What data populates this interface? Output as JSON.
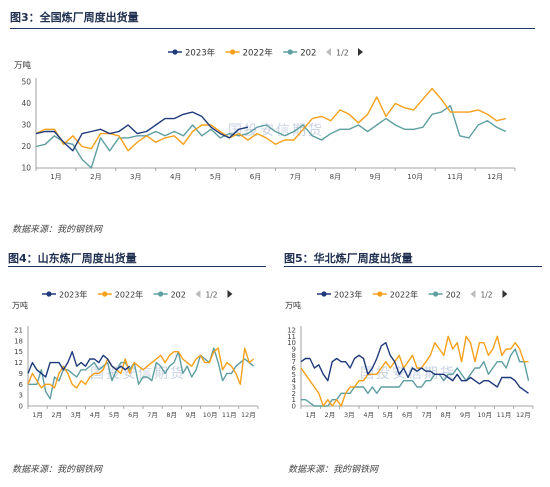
{
  "source_text": "数据来源：我的钢铁网",
  "watermark": "国投安信期货",
  "legend_page": "1/2",
  "colors": {
    "s2023": "#1f3a7a",
    "s2022": "#f5a01a",
    "s202": "#5f9ea0",
    "axis": "#888888",
    "rule": "#1f3864"
  },
  "chart_data": [
    {
      "id": "c1",
      "type": "line",
      "title": "图3：全国炼厂周度出货量",
      "unit_label": "万吨",
      "ylim": [
        10,
        50
      ],
      "yticks": [
        10,
        20,
        30,
        40,
        50
      ],
      "x_range": [
        0,
        52
      ],
      "x_tick_labels": [
        "1月",
        "2月",
        "3月",
        "4月",
        "5月",
        "6月",
        "7月",
        "8月",
        "9月",
        "10月",
        "11月",
        "12月"
      ],
      "legend": [
        "2023年",
        "2022年",
        "202"
      ],
      "series": [
        {
          "name": "2023年",
          "key": "s2023",
          "x": [
            0,
            1,
            2,
            3,
            4,
            5,
            6,
            7,
            8,
            9,
            10,
            11,
            12,
            13,
            14,
            15,
            16,
            17,
            18,
            19,
            20,
            21,
            22,
            23
          ],
          "y": [
            26,
            27,
            27,
            22,
            18,
            26,
            27,
            28,
            26,
            27,
            30,
            26,
            27,
            30,
            33,
            33,
            35,
            36,
            34,
            29,
            26,
            24,
            28,
            29
          ]
        },
        {
          "name": "2022年",
          "key": "s2022",
          "x": [
            0,
            1,
            2,
            3,
            4,
            5,
            6,
            7,
            8,
            9,
            10,
            11,
            12,
            13,
            14,
            15,
            16,
            17,
            18,
            19,
            20,
            21,
            22,
            23,
            24,
            25,
            26,
            27,
            28,
            29,
            30,
            31,
            32,
            33,
            34,
            35,
            36,
            37,
            38,
            39,
            40,
            41,
            42,
            43,
            44,
            45,
            46,
            47,
            48,
            49,
            50,
            51
          ],
          "y": [
            26,
            28,
            28,
            21,
            25,
            20,
            19,
            26,
            26,
            25,
            18,
            22,
            25,
            22,
            24,
            25,
            21,
            27,
            30,
            30,
            27,
            24,
            26,
            23,
            26,
            24,
            21,
            23,
            23,
            28,
            33,
            34,
            32,
            37,
            35,
            31,
            35,
            43,
            34,
            40,
            38,
            37,
            42,
            47,
            42,
            36,
            36,
            36,
            37,
            35,
            32,
            33
          ]
        },
        {
          "name": "202",
          "key": "s202",
          "x": [
            0,
            1,
            2,
            3,
            4,
            5,
            6,
            7,
            8,
            9,
            10,
            11,
            12,
            13,
            14,
            15,
            16,
            17,
            18,
            19,
            20,
            21,
            22,
            23,
            24,
            25,
            26,
            27,
            28,
            29,
            30,
            31,
            32,
            33,
            34,
            35,
            36,
            37,
            38,
            39,
            40,
            41,
            42,
            43,
            44,
            45,
            46,
            47,
            48,
            49,
            50,
            51
          ],
          "y": [
            20,
            21,
            25,
            22,
            21,
            14,
            10,
            24,
            18,
            24,
            24,
            25,
            25,
            27,
            25,
            27,
            25,
            30,
            25,
            28,
            24,
            26,
            25,
            26,
            29,
            30,
            27,
            25,
            27,
            30,
            25,
            23,
            26,
            28,
            28,
            30,
            27,
            30,
            33,
            30,
            28,
            28,
            29,
            35,
            36,
            39,
            25,
            24,
            30,
            32,
            29,
            27
          ]
        }
      ]
    },
    {
      "id": "c2",
      "type": "line",
      "title": "图4：山东炼厂周度出货量",
      "unit_label": "万吨",
      "ylim": [
        0,
        21
      ],
      "yticks": [
        0,
        3,
        6,
        9,
        12,
        15,
        18,
        21
      ],
      "x_range": [
        0,
        52
      ],
      "x_tick_labels": [
        "1月",
        "2月",
        "3月",
        "4月",
        "5月",
        "6月",
        "7月",
        "8月",
        "9月",
        "10月",
        "11月",
        "12月"
      ],
      "legend": [
        "2023年",
        "2022年",
        "202"
      ],
      "series": [
        {
          "name": "2023年",
          "key": "s2023",
          "x": [
            0,
            1,
            2,
            3,
            4,
            5,
            6,
            7,
            8,
            9,
            10,
            11,
            12,
            13,
            14,
            15,
            16,
            17,
            18,
            19,
            20,
            21,
            22,
            23
          ],
          "y": [
            9,
            12,
            10,
            9,
            8,
            12,
            12,
            12,
            10,
            12,
            15,
            11,
            12,
            11,
            13,
            13,
            12,
            14,
            13,
            11,
            10,
            11,
            10,
            11
          ]
        },
        {
          "name": "2022年",
          "key": "s2022",
          "x": [
            0,
            1,
            2,
            3,
            4,
            5,
            6,
            7,
            8,
            9,
            10,
            11,
            12,
            13,
            14,
            15,
            16,
            17,
            18,
            19,
            20,
            21,
            22,
            23,
            24,
            25,
            26,
            27,
            28,
            29,
            30,
            31,
            32,
            33,
            34,
            35,
            36,
            37,
            38,
            39,
            40,
            41,
            42,
            43,
            44,
            45,
            46,
            47,
            48,
            49,
            50,
            51
          ],
          "y": [
            6,
            9,
            7,
            5,
            6,
            6,
            5,
            9,
            11,
            9,
            6,
            5,
            7,
            6,
            8,
            9,
            9,
            10,
            13,
            11,
            10,
            9,
            13,
            9,
            12,
            11,
            10,
            11,
            12,
            13,
            14,
            12,
            14,
            15,
            15,
            13,
            12,
            11,
            13,
            14,
            12,
            12,
            15,
            16,
            10,
            12,
            11,
            9,
            6,
            16,
            12,
            13
          ]
        },
        {
          "name": "202",
          "key": "s202",
          "x": [
            0,
            1,
            2,
            3,
            4,
            5,
            6,
            7,
            8,
            9,
            10,
            11,
            12,
            13,
            14,
            15,
            16,
            17,
            18,
            19,
            20,
            21,
            22,
            23,
            24,
            25,
            26,
            27,
            28,
            29,
            30,
            31,
            32,
            33,
            34,
            35,
            36,
            37,
            38,
            39,
            40,
            41,
            42,
            43,
            44,
            45,
            46,
            47,
            48,
            49,
            50,
            51
          ],
          "y": [
            6,
            6,
            6,
            10,
            4,
            2,
            8,
            7,
            10,
            10,
            9,
            8,
            10,
            10,
            11,
            12,
            10,
            11,
            12,
            7,
            10,
            12,
            12,
            10,
            12,
            6,
            8,
            8,
            7,
            12,
            11,
            9,
            11,
            12,
            15,
            9,
            11,
            8,
            10,
            14,
            13,
            12,
            16,
            12,
            7,
            9,
            9,
            11,
            12,
            13,
            12,
            11
          ]
        }
      ]
    },
    {
      "id": "c3",
      "type": "line",
      "title": "图5：华北炼厂周度出货量",
      "unit_label": "万吨",
      "ylim": [
        0,
        12
      ],
      "yticks": [
        0,
        1,
        2,
        3,
        4,
        5,
        6,
        7,
        8,
        9,
        10,
        11,
        12
      ],
      "x_range": [
        0,
        52
      ],
      "x_tick_labels": [
        "1月",
        "2月",
        "3月",
        "4月",
        "5月",
        "6月",
        "7月",
        "8月",
        "9月",
        "10月",
        "11月",
        "12月"
      ],
      "legend": [
        "2023年",
        "2022年",
        "202"
      ],
      "series": [
        {
          "name": "2023年",
          "key": "s2023",
          "x": [
            0,
            1,
            2,
            3,
            4,
            5,
            6,
            7,
            8,
            9,
            10,
            11,
            12,
            13,
            14,
            15,
            16,
            17,
            18,
            19,
            20,
            21,
            22,
            23,
            24,
            25,
            26,
            27,
            28,
            29,
            30,
            31,
            32,
            33,
            34,
            35,
            36,
            37,
            38,
            39,
            40,
            41,
            42,
            43,
            44,
            45,
            46,
            47,
            48,
            49,
            50,
            51
          ],
          "y": [
            7,
            7.5,
            7.5,
            6,
            6.5,
            5,
            4,
            7,
            7.5,
            7,
            7,
            6,
            7.5,
            8,
            7.5,
            5,
            6,
            7.5,
            9.5,
            10,
            8,
            7,
            5,
            6,
            4.5,
            6,
            5.5,
            6,
            5.5,
            5.5,
            5,
            5,
            5,
            4.5,
            4,
            5,
            4,
            4,
            4.5,
            4,
            3.5,
            4,
            4,
            3.5,
            3,
            4.5,
            4.5,
            4.5,
            4,
            3,
            2.5,
            2
          ]
        },
        {
          "name": "2022年",
          "key": "s2022",
          "x": [
            0,
            1,
            2,
            3,
            4,
            5,
            6,
            7,
            8,
            9,
            10,
            11,
            12,
            13,
            14,
            15,
            16,
            17,
            18,
            19,
            20,
            21,
            22,
            23,
            24,
            25,
            26,
            27,
            28,
            29,
            30,
            31,
            32,
            33,
            34,
            35,
            36,
            37,
            38,
            39,
            40,
            41,
            42,
            43,
            44,
            45,
            46,
            47,
            48,
            49,
            50,
            51
          ],
          "y": [
            6,
            5,
            4,
            3,
            2,
            0,
            1,
            0,
            1,
            0,
            2,
            3,
            3,
            4,
            4,
            5,
            5,
            5,
            6,
            7,
            6,
            7,
            8,
            6,
            7,
            8,
            6,
            6,
            7,
            8,
            10,
            9,
            8,
            11,
            9,
            10,
            7,
            11,
            10,
            7,
            10,
            10,
            8,
            9,
            11,
            8,
            9,
            9,
            10,
            9,
            7,
            7
          ]
        },
        {
          "name": "202",
          "key": "s202",
          "x": [
            0,
            1,
            2,
            3,
            4,
            5,
            6,
            7,
            8,
            9,
            10,
            11,
            12,
            13,
            14,
            15,
            16,
            17,
            18,
            19,
            20,
            21,
            22,
            23,
            24,
            25,
            26,
            27,
            28,
            29,
            30,
            31,
            32,
            33,
            34,
            35,
            36,
            37,
            38,
            39,
            40,
            41,
            42,
            43,
            44,
            45,
            46,
            47,
            48,
            49,
            50,
            51
          ],
          "y": [
            1,
            1,
            0.5,
            0,
            0,
            0,
            0,
            1,
            1,
            2,
            2,
            2,
            3,
            3,
            3,
            2,
            3,
            2,
            3,
            3,
            3,
            3,
            3,
            4,
            4,
            4,
            3,
            3,
            4,
            4,
            5,
            5,
            4,
            5,
            5,
            6,
            5,
            4,
            5,
            6,
            6,
            7,
            5,
            6,
            7,
            7,
            6,
            8,
            9,
            7,
            7,
            4
          ]
        }
      ]
    }
  ]
}
